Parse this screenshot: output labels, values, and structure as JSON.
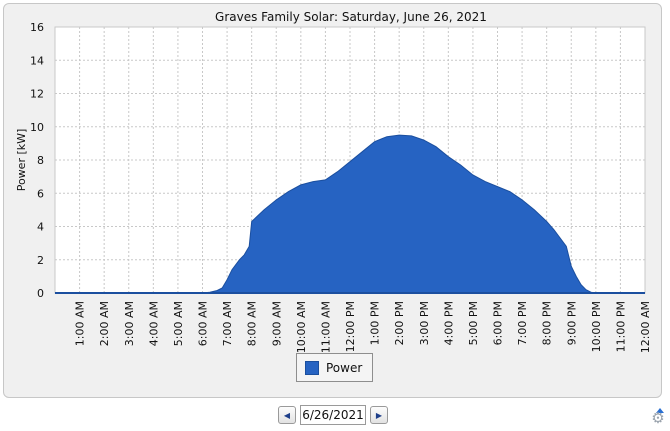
{
  "chart_data": {
    "type": "area",
    "title": "Graves Family Solar: Saturday, June 26, 2021",
    "ylabel": "Power [kW]",
    "xlabel": "",
    "ylim": [
      0,
      16
    ],
    "yticks": [
      0,
      2,
      4,
      6,
      8,
      10,
      12,
      14,
      16
    ],
    "xticks": [
      "1:00 AM",
      "2:00 AM",
      "3:00 AM",
      "4:00 AM",
      "5:00 AM",
      "6:00 AM",
      "7:00 AM",
      "8:00 AM",
      "9:00 AM",
      "10:00 AM",
      "11:00 AM",
      "12:00 PM",
      "1:00 PM",
      "2:00 PM",
      "3:00 PM",
      "4:00 PM",
      "5:00 PM",
      "6:00 PM",
      "7:00 PM",
      "8:00 PM",
      "9:00 PM",
      "10:00 PM",
      "11:00 PM",
      "12:00 AM"
    ],
    "grid": true,
    "legend_position": "bottom",
    "series": [
      {
        "name": "Power",
        "color": "#2663c2",
        "hours": [
          0,
          1,
          2,
          3,
          4,
          5,
          5.5,
          6,
          6.3,
          6.6,
          6.8,
          7.0,
          7.2,
          7.5,
          7.7,
          7.9,
          8.0,
          8.5,
          9.0,
          9.5,
          10.0,
          10.5,
          11.0,
          11.5,
          12.0,
          12.5,
          13.0,
          13.5,
          14.0,
          14.5,
          15.0,
          15.5,
          16.0,
          16.5,
          17.0,
          17.5,
          18.0,
          18.5,
          19.0,
          19.5,
          20.0,
          20.3,
          20.5,
          20.8,
          21.0,
          21.2,
          21.4,
          21.6,
          21.8,
          22.0,
          23.0,
          24.0
        ],
        "values": [
          0,
          0,
          0,
          0,
          0,
          0,
          0,
          0,
          0.05,
          0.15,
          0.3,
          0.8,
          1.4,
          2.0,
          2.3,
          2.8,
          4.3,
          5.0,
          5.6,
          6.1,
          6.5,
          6.7,
          6.8,
          7.3,
          7.9,
          8.5,
          9.1,
          9.4,
          9.5,
          9.45,
          9.2,
          8.8,
          8.2,
          7.7,
          7.1,
          6.7,
          6.4,
          6.1,
          5.6,
          5.0,
          4.3,
          3.8,
          3.4,
          2.8,
          1.6,
          1.0,
          0.5,
          0.2,
          0.05,
          0,
          0,
          0
        ]
      }
    ]
  },
  "legend": {
    "label": "Power"
  },
  "navigator": {
    "prev_label": "◀",
    "date_value": "6/26/2021",
    "next_label": "▶"
  },
  "settings_icon": "gear-icon"
}
